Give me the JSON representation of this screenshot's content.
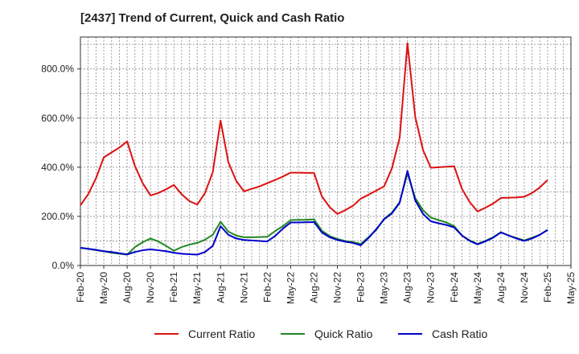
{
  "chart_data": {
    "type": "line",
    "title": "[2437]  Trend of Current, Quick and Cash Ratio",
    "xlabel": "",
    "ylabel": "",
    "ylim": [
      0,
      930
    ],
    "yticks": [
      "0.0%",
      "200.0%",
      "400.0%",
      "600.0%",
      "800.0%"
    ],
    "ytick_values": [
      0,
      200,
      400,
      600,
      800
    ],
    "xticks": [
      "Feb-20",
      "May-20",
      "Aug-20",
      "Nov-20",
      "Feb-21",
      "May-21",
      "Aug-21",
      "Nov-21",
      "Feb-22",
      "May-22",
      "Aug-22",
      "Nov-22",
      "Feb-23",
      "May-23",
      "Aug-23",
      "Nov-23",
      "Feb-24",
      "May-24",
      "Aug-24",
      "Nov-24",
      "Feb-25",
      "May-25"
    ],
    "grid": true,
    "legend_position": "bottom",
    "x": [
      "2020-02",
      "2020-03",
      "2020-04",
      "2020-05",
      "2020-06",
      "2020-07",
      "2020-08",
      "2020-09",
      "2020-10",
      "2020-11",
      "2020-12",
      "2021-01",
      "2021-02",
      "2021-03",
      "2021-04",
      "2021-05",
      "2021-06",
      "2021-07",
      "2021-08",
      "2021-09",
      "2021-10",
      "2021-11",
      "2021-12",
      "2022-01",
      "2022-02",
      "2022-03",
      "2022-04",
      "2022-05",
      "2022-06",
      "2022-07",
      "2022-08",
      "2022-09",
      "2022-10",
      "2022-11",
      "2022-12",
      "2023-01",
      "2023-02",
      "2023-03",
      "2023-04",
      "2023-05",
      "2023-06",
      "2023-07",
      "2023-08",
      "2023-09",
      "2023-10",
      "2023-11",
      "2023-12",
      "2024-01",
      "2024-02",
      "2024-03",
      "2024-04",
      "2024-05",
      "2024-06",
      "2024-07",
      "2024-08",
      "2024-09",
      "2024-10",
      "2024-11",
      "2024-12",
      "2025-01",
      "2025-02"
    ],
    "series": [
      {
        "name": "Current Ratio",
        "color": "#dd1111",
        "values": [
          245,
          290,
          355,
          440,
          460,
          480,
          505,
          405,
          335,
          285,
          295,
          310,
          328,
          290,
          262,
          248,
          295,
          380,
          590,
          420,
          345,
          302,
          312,
          322,
          335,
          348,
          362,
          378,
          378,
          377,
          377,
          282,
          238,
          210,
          225,
          243,
          272,
          288,
          305,
          322,
          395,
          520,
          905,
          605,
          470,
          398,
          400,
          402,
          404,
          312,
          258,
          220,
          235,
          252,
          275,
          276,
          277,
          280,
          295,
          318,
          348
        ]
      },
      {
        "name": "Quick Ratio",
        "color": "#228822",
        "values": [
          72,
          68,
          62,
          58,
          52,
          48,
          44,
          75,
          95,
          110,
          98,
          80,
          60,
          75,
          85,
          92,
          105,
          125,
          178,
          138,
          122,
          115,
          115,
          116,
          117,
          140,
          160,
          185,
          186,
          186,
          188,
          142,
          120,
          108,
          100,
          95,
          88,
          115,
          145,
          190,
          215,
          258,
          375,
          275,
          225,
          195,
          185,
          175,
          160,
          122,
          102,
          88,
          100,
          115,
          135,
          122,
          112,
          102,
          113,
          125,
          145
        ]
      },
      {
        "name": "Cash Ratio",
        "color": "#0000cc",
        "values": [
          72,
          68,
          64,
          58,
          55,
          50,
          45,
          55,
          62,
          66,
          62,
          58,
          52,
          48,
          46,
          44,
          55,
          80,
          160,
          125,
          110,
          104,
          102,
          100,
          98,
          120,
          150,
          175,
          175,
          176,
          177,
          135,
          115,
          104,
          97,
          92,
          82,
          112,
          148,
          188,
          212,
          255,
          385,
          265,
          210,
          180,
          172,
          165,
          155,
          122,
          100,
          86,
          98,
          113,
          135,
          122,
          110,
          100,
          110,
          125,
          145
        ]
      }
    ]
  }
}
